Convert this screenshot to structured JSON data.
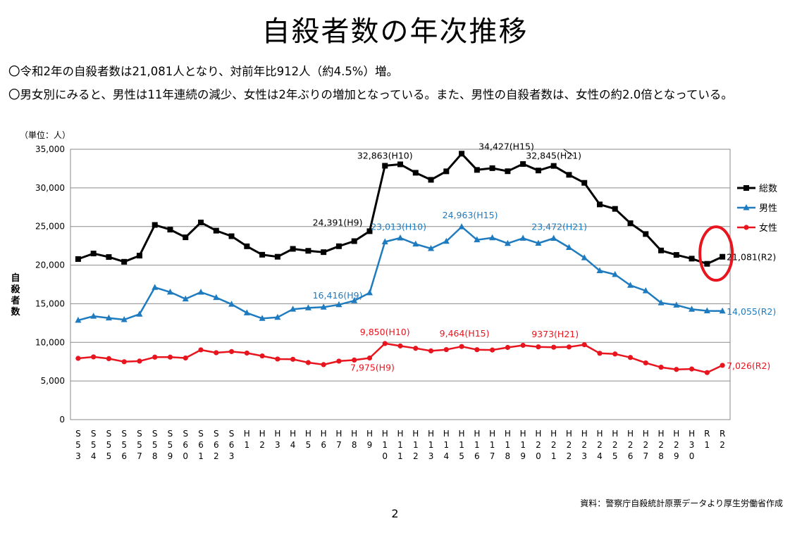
{
  "page": {
    "title": "自殺者数の年次推移",
    "bullets": [
      "〇令和2年の自殺者数は21,081人となり、対前年比912人（約4.5%）増。",
      "〇男女別にみると、男性は11年連続の減少、女性は2年ぶりの増加となっている。また、男性の自殺者数は、女性の約2.0倍となっている。"
    ],
    "source": "資料：警察庁自殺統計原票データより厚生労働省作成",
    "page_number": "2"
  },
  "chart_data": {
    "type": "line",
    "unit_label": "（単位：人）",
    "ylabel": "自殺者数",
    "ylim": [
      0,
      35000
    ],
    "yticks": [
      0,
      5000,
      10000,
      15000,
      20000,
      25000,
      30000,
      35000
    ],
    "ytick_labels": [
      "0",
      "5,000",
      "10,000",
      "15,000",
      "20,000",
      "25,000",
      "30,000",
      "35,000"
    ],
    "grid": true,
    "legend_position": "right",
    "categories": [
      "S53",
      "S54",
      "S55",
      "S56",
      "S57",
      "S58",
      "S59",
      "S60",
      "S61",
      "S62",
      "S63",
      "H1",
      "H2",
      "H3",
      "H4",
      "H5",
      "H6",
      "H7",
      "H8",
      "H9",
      "H10",
      "H11",
      "H12",
      "H13",
      "H14",
      "H15",
      "H16",
      "H17",
      "H18",
      "H19",
      "H20",
      "H21",
      "H22",
      "H23",
      "H24",
      "H25",
      "H26",
      "H27",
      "H28",
      "H29",
      "H30",
      "R1",
      "R2"
    ],
    "series": [
      {
        "name": "総数",
        "color": "#000000",
        "marker": "square",
        "values": [
          20788,
          21503,
          21048,
          20434,
          21228,
          25202,
          24596,
          23599,
          25524,
          24460,
          23742,
          22436,
          21346,
          21084,
          22104,
          21851,
          21679,
          22445,
          23104,
          24391,
          32863,
          33048,
          31957,
          31042,
          32143,
          34427,
          32325,
          32552,
          32155,
          33093,
          32249,
          32845,
          31690,
          30651,
          27858,
          27283,
          25427,
          24025,
          21897,
          21321,
          20840,
          20169,
          21081
        ]
      },
      {
        "name": "男性",
        "color": "#1f7bbf",
        "marker": "triangle",
        "values": [
          12859,
          13386,
          13155,
          12942,
          13654,
          17116,
          16508,
          15624,
          16497,
          15802,
          14934,
          13818,
          13102,
          13242,
          14296,
          14468,
          14560,
          14874,
          15393,
          16416,
          23013,
          23512,
          22727,
          22144,
          23080,
          24963,
          23272,
          23540,
          22813,
          23478,
          22831,
          23472,
          22283,
          20955,
          19273,
          18787,
          17386,
          16681,
          15121,
          14826,
          14290,
          14078,
          14055
        ]
      },
      {
        "name": "女性",
        "color": "#e8141e",
        "marker": "circle",
        "values": [
          7929,
          8117,
          7893,
          7492,
          7574,
          8086,
          8088,
          7975,
          9027,
          8658,
          8808,
          8618,
          8244,
          7842,
          7808,
          7383,
          7119,
          7571,
          7711,
          7975,
          9850,
          9536,
          9230,
          8898,
          9063,
          9464,
          9053,
          9012,
          9342,
          9615,
          9418,
          9373,
          9407,
          9696,
          8585,
          8496,
          8041,
          7344,
          6776,
          6495,
          6550,
          6091,
          7026
        ]
      }
    ],
    "annotations": [
      {
        "series": 0,
        "index": 19,
        "text": "24,391(H9)",
        "color": "#000000"
      },
      {
        "series": 0,
        "index": 20,
        "text": "32,863(H10)",
        "color": "#000000"
      },
      {
        "series": 0,
        "index": 25,
        "text": "34,427(H15)",
        "color": "#000000"
      },
      {
        "series": 0,
        "index": 31,
        "text": "32,845(H21)",
        "color": "#000000"
      },
      {
        "series": 0,
        "index": 42,
        "text": "21,081(R2)",
        "color": "#000000"
      },
      {
        "series": 1,
        "index": 19,
        "text": "16,416(H9)",
        "color": "#1f7bbf"
      },
      {
        "series": 1,
        "index": 20,
        "text": "23,013(H10)",
        "color": "#1f7bbf"
      },
      {
        "series": 1,
        "index": 25,
        "text": "24,963(H15)",
        "color": "#1f7bbf"
      },
      {
        "series": 1,
        "index": 31,
        "text": "23,472(H21)",
        "color": "#1f7bbf"
      },
      {
        "series": 1,
        "index": 42,
        "text": "14,055(R2)",
        "color": "#1f7bbf"
      },
      {
        "series": 2,
        "index": 19,
        "text": "7,975(H9)",
        "color": "#e8141e"
      },
      {
        "series": 2,
        "index": 20,
        "text": "9,850(H10)",
        "color": "#e8141e"
      },
      {
        "series": 2,
        "index": 25,
        "text": "9,464(H15)",
        "color": "#e8141e"
      },
      {
        "series": 2,
        "index": 31,
        "text": "9373(H21)",
        "color": "#e8141e"
      },
      {
        "series": 2,
        "index": 42,
        "text": "7,026(R2)",
        "color": "#e8141e"
      }
    ],
    "highlight": {
      "index": 42,
      "shape": "ellipse",
      "color": "#e8141e"
    }
  }
}
